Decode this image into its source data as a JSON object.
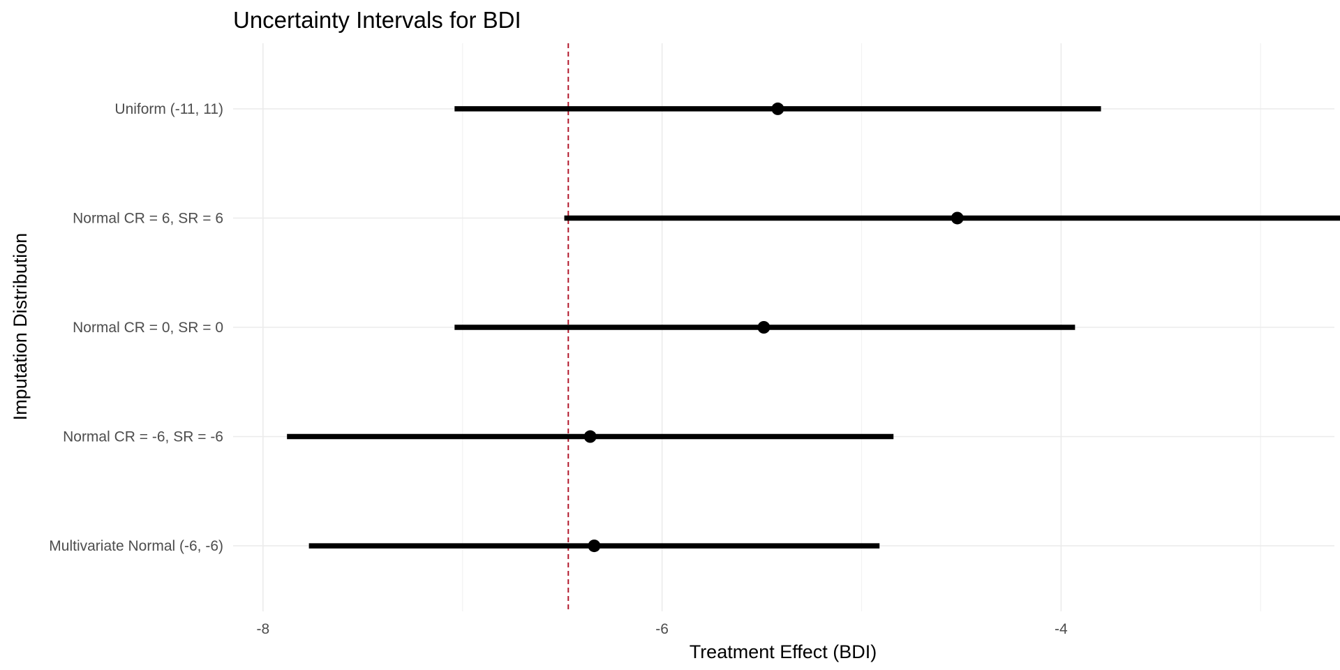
{
  "chart_data": {
    "type": "interval",
    "title": "Uncertainty Intervals for BDI",
    "xlabel": "Treatment Effect (BDI)",
    "ylabel": "Imputation Distribution",
    "xlim": [
      -8.15,
      -2.63
    ],
    "x_ticks": [
      -8,
      -6,
      -4
    ],
    "x_tick_labels": [
      "-8",
      "-6",
      "-4"
    ],
    "x_minor_ticks": [
      -7,
      -5,
      -3
    ],
    "categories": [
      "Uniform (-11, 11)",
      "Normal CR = 6, SR = 6",
      "Normal CR = 0, SR = 0",
      "Normal CR = -6, SR = -6",
      "Multivariate Normal (-6, -6)"
    ],
    "estimates": [
      -5.42,
      -4.52,
      -5.49,
      -6.36,
      -6.34
    ],
    "lower": [
      -7.04,
      -6.49,
      -7.04,
      -7.88,
      -7.77
    ],
    "upper": [
      -3.8,
      -2.55,
      -3.93,
      -4.84,
      -4.91
    ],
    "reference_line": {
      "x": -6.47,
      "color": "#b2182b",
      "style": "dashed"
    },
    "grid": true,
    "legend": "none",
    "colors": {
      "interval": "#000000",
      "point": "#000000",
      "grid": "#ebebeb",
      "tick_label": "#4d4d4d"
    }
  }
}
